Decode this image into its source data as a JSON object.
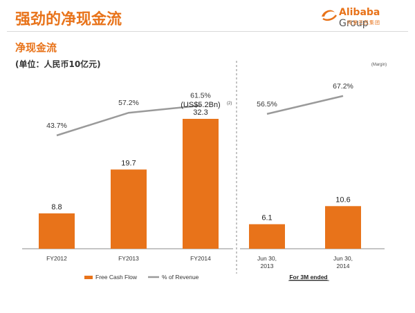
{
  "page": {
    "title": "强劲的净现金流",
    "section_title": "净现金流",
    "unit_label": "(单位：人民币10亿元)"
  },
  "logo": {
    "brand": "Alibaba",
    "group": "Group",
    "sub": "阿里巴巴集团"
  },
  "colors": {
    "accent": "#e8731a",
    "bar": "#e8731a",
    "line": "#9a9a9a"
  },
  "chart_data": [
    {
      "type": "bar",
      "categories": [
        "FY2012",
        "FY2013",
        "FY2014"
      ],
      "series": [
        {
          "name": "Free Cash Flow",
          "values": [
            8.8,
            19.7,
            32.3
          ]
        },
        {
          "name": "% of Revenue",
          "values": [
            43.7,
            57.2,
            61.5
          ],
          "unit": "%",
          "style": "line"
        }
      ],
      "annotations": [
        "(US$5.2Bn)",
        "(2)"
      ],
      "legend": [
        "Free Cash Flow",
        "% of Revenue"
      ]
    },
    {
      "type": "bar",
      "categories": [
        "Jun 30, 2013",
        "Jun 30, 2014"
      ],
      "series": [
        {
          "name": "Free Cash Flow",
          "values": [
            6.1,
            10.6
          ]
        },
        {
          "name": "% of Revenue",
          "values": [
            56.5,
            67.2
          ],
          "unit": "%",
          "style": "line"
        }
      ],
      "annotations": [
        "(Margin)"
      ],
      "group_label": "For 3M ended"
    }
  ]
}
